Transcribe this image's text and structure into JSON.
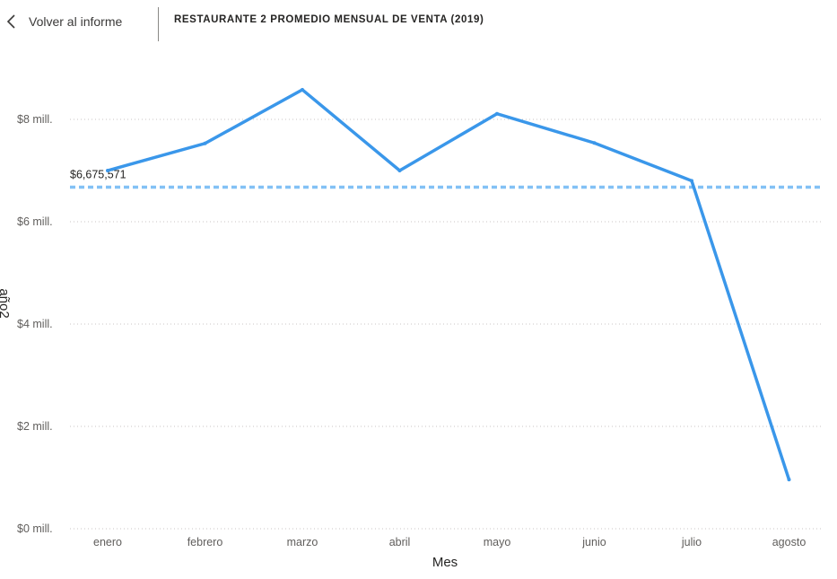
{
  "header": {
    "back_label": "Volver al informe",
    "report_title": "RESTAURANTE 2 PROMEDIO MENSUAL DE VENTA (2019)"
  },
  "icons": {
    "back": "chevron-left-icon"
  },
  "colors": {
    "line": "#3a97ea",
    "average_line": "#83c1f5",
    "gridline": "#c8c6c4",
    "divider": "#8a8886"
  },
  "chart_data": {
    "type": "line",
    "title": "RESTAURANTE 2 PROMEDIO MENSUAL DE VENTA (2019)",
    "xlabel": "Mes",
    "ylabel": "año2",
    "categories": [
      "enero",
      "febrero",
      "marzo",
      "abril",
      "mayo",
      "junio",
      "julio",
      "agosto"
    ],
    "series": [
      {
        "values": [
          7000000,
          7530000,
          8580000,
          7000000,
          8110000,
          7540000,
          6800000,
          960000
        ]
      }
    ],
    "average_line": {
      "value": 6675571,
      "label": "$6,675,571"
    },
    "y_ticks": [
      {
        "value": 0,
        "label": "$0 mill."
      },
      {
        "value": 2000000,
        "label": "$2 mill."
      },
      {
        "value": 4000000,
        "label": "$4 mill."
      },
      {
        "value": 6000000,
        "label": "$6 mill."
      },
      {
        "value": 8000000,
        "label": "$8 mill."
      }
    ],
    "ylim": [
      0,
      9000000
    ],
    "grid": true,
    "legend": "none"
  }
}
